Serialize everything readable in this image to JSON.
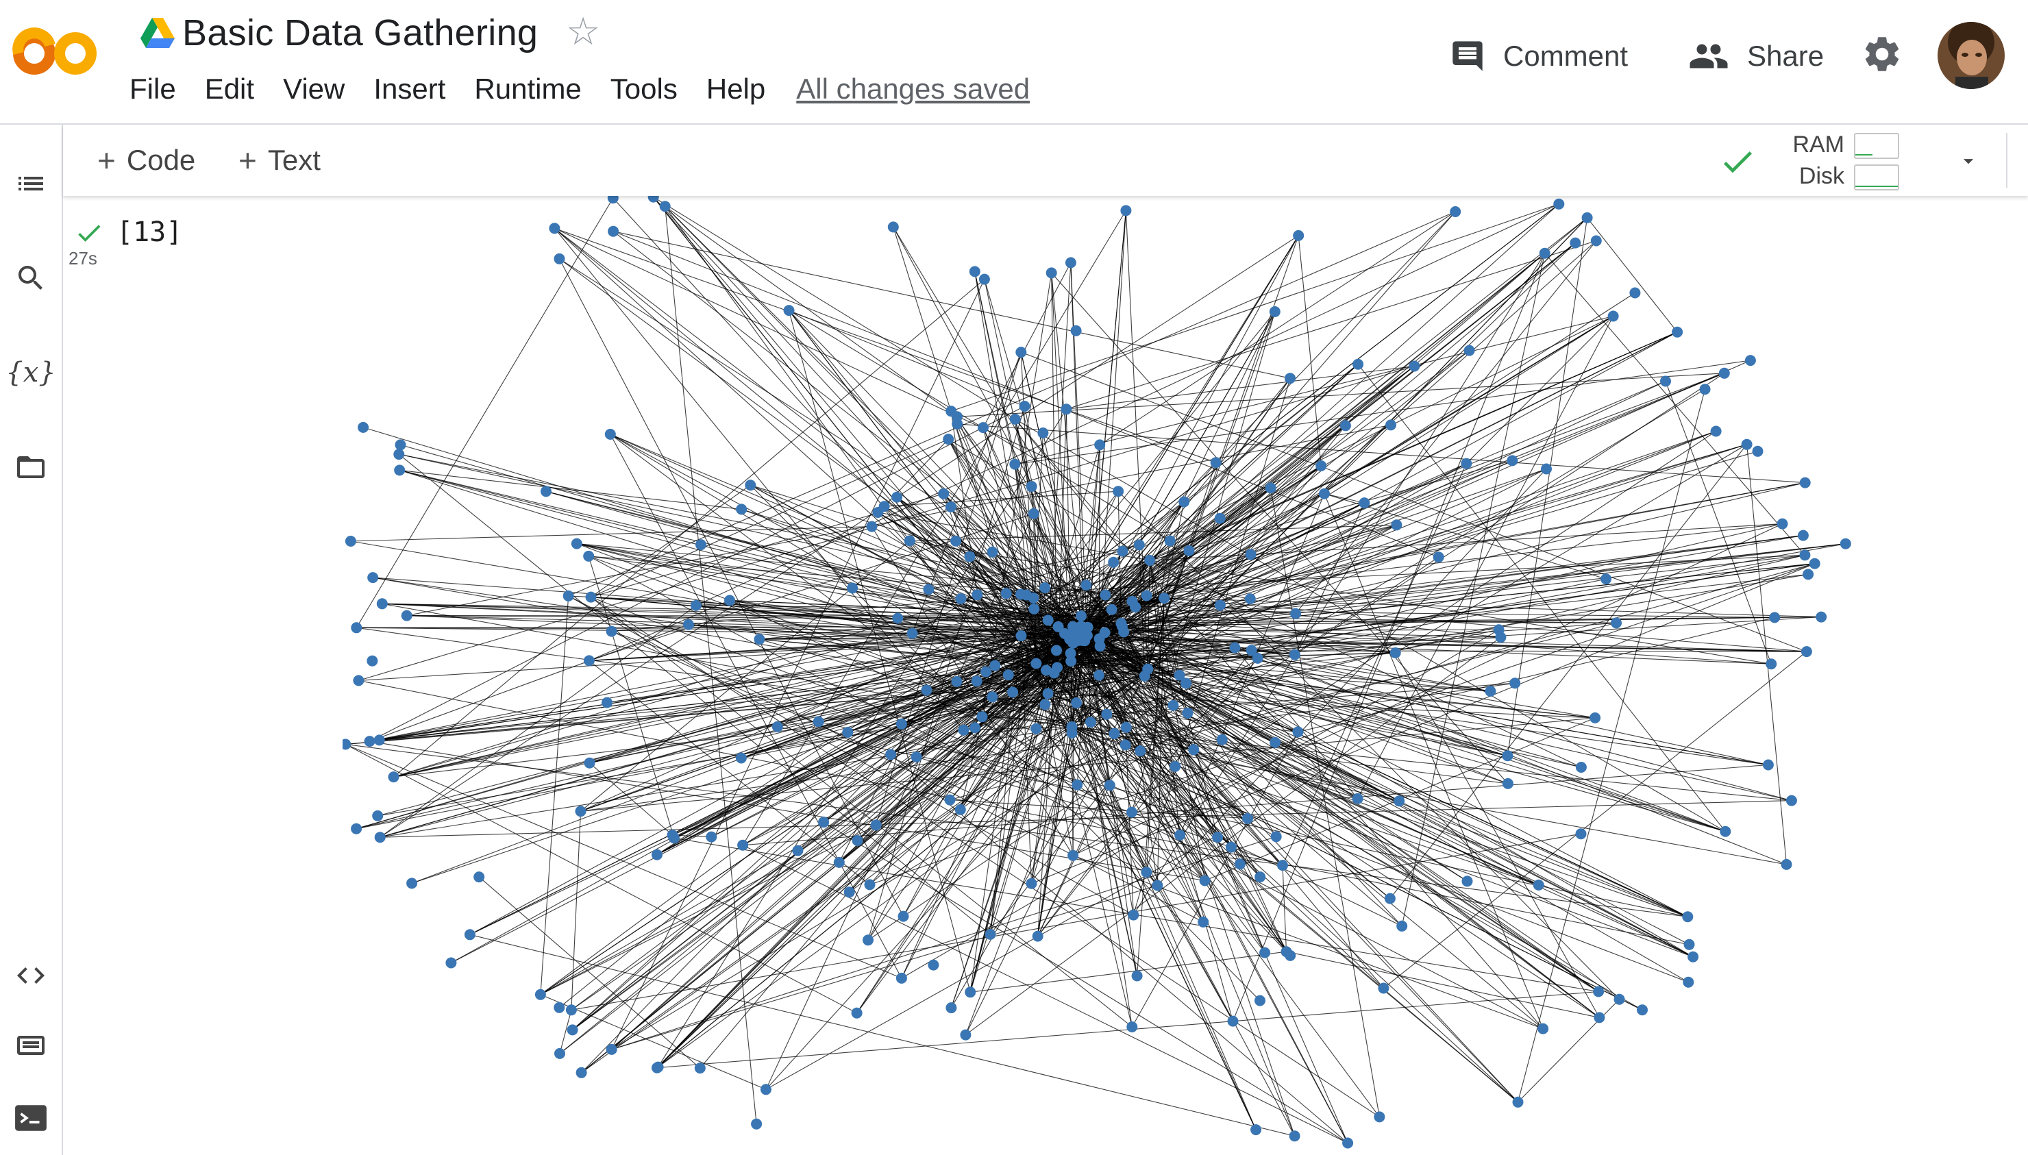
{
  "app": {
    "logo_alt": "CO",
    "drive_icon": "google-drive-icon"
  },
  "document": {
    "title": "Basic Data Gathering",
    "star_icon": "star-outline-icon"
  },
  "menu": [
    "File",
    "Edit",
    "View",
    "Insert",
    "Runtime",
    "Tools",
    "Help"
  ],
  "save_status": "All changes saved",
  "header_actions": {
    "comment_label": "Comment",
    "share_label": "Share",
    "settings_icon": "gear-icon",
    "avatar_icon": "user-avatar"
  },
  "sidebar": {
    "items": [
      {
        "name": "table-of-contents-icon"
      },
      {
        "name": "search-icon"
      },
      {
        "name": "variables-icon",
        "glyph": "{x}"
      },
      {
        "name": "files-folder-icon"
      },
      {
        "name": "code-snippets-icon"
      },
      {
        "name": "command-palette-icon"
      },
      {
        "name": "terminal-icon"
      }
    ]
  },
  "toolbar": {
    "code_label": "Code",
    "text_label": "Text",
    "ram_label": "RAM",
    "disk_label": "Disk",
    "connected_icon": "checkmark-icon"
  },
  "cell": {
    "execution_count": "[13]",
    "run_time": "27s",
    "status_icon": "checkmark-icon"
  },
  "colors": {
    "node": "#3a76b4",
    "edge": "#000000",
    "logo_orange": "#f9ab00",
    "logo_dark_orange": "#e8710a",
    "success_green": "#34a853"
  }
}
